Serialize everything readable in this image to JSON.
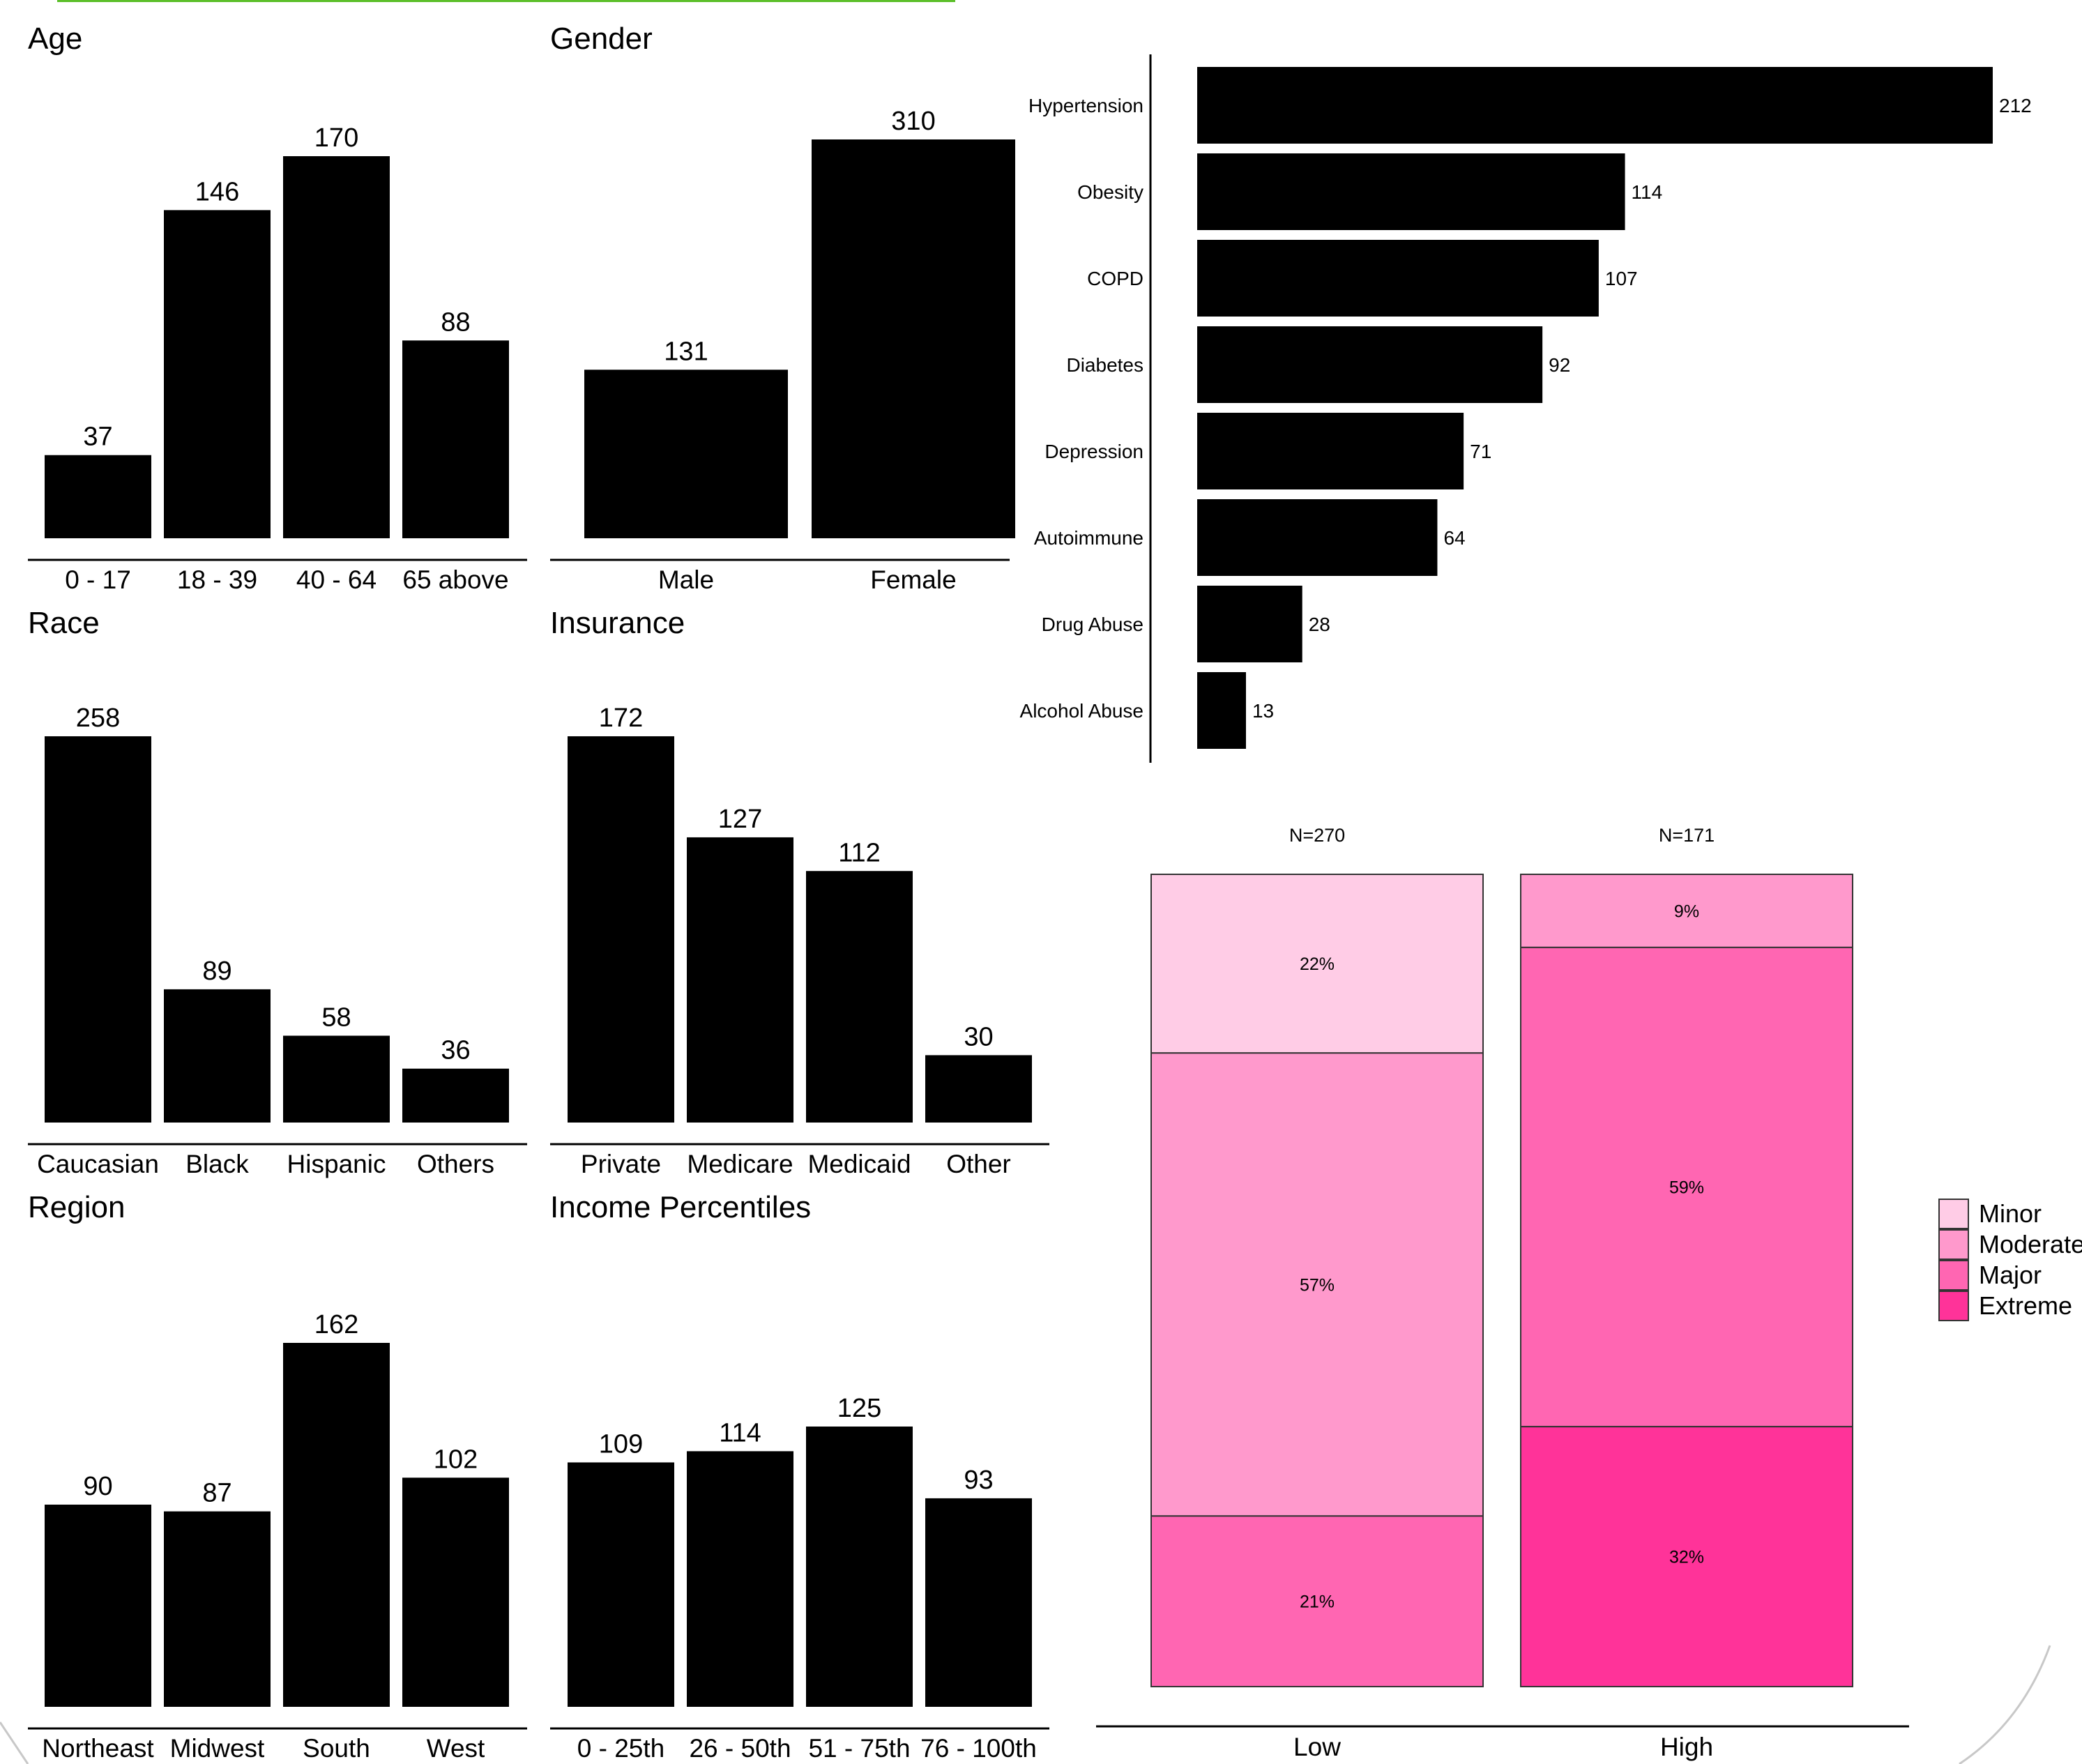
{
  "colors": {
    "bar": "#000000",
    "accent_line": "#5cbf2a",
    "Minor": "#ffcce6",
    "Moderate": "#ff99cc",
    "Major": "#ff66b2",
    "Extreme": "#ff3399"
  },
  "chart_data": [
    {
      "type": "bar",
      "title": "Age",
      "categories": [
        "0 - 17",
        "18 - 39",
        "40 - 64",
        "65 above"
      ],
      "values": [
        37,
        146,
        170,
        88
      ],
      "value_labels": [
        "37",
        "146",
        "170",
        "88"
      ]
    },
    {
      "type": "bar",
      "title": "Gender",
      "categories": [
        "Male",
        "Female"
      ],
      "values": [
        131,
        310
      ],
      "value_labels": [
        "131",
        "310"
      ]
    },
    {
      "type": "bar",
      "title": "Race",
      "categories": [
        "Caucasian",
        "Black",
        "Hispanic",
        "Others"
      ],
      "values": [
        258,
        89,
        58,
        36
      ],
      "value_labels": [
        "258",
        "89",
        "58",
        "36"
      ]
    },
    {
      "type": "bar",
      "title": "Insurance",
      "categories": [
        "Private",
        "Medicare",
        "Medicaid",
        "Other"
      ],
      "values": [
        172,
        127,
        112,
        30
      ],
      "value_labels": [
        "172",
        "127",
        "112",
        "30"
      ]
    },
    {
      "type": "bar",
      "title": "Region",
      "categories": [
        "Northeast",
        "Midwest",
        "South",
        "West"
      ],
      "values": [
        90,
        87,
        162,
        102
      ],
      "value_labels": [
        "90",
        "87",
        "162",
        "102"
      ]
    },
    {
      "type": "bar",
      "title": "Income Percentiles",
      "categories": [
        "0 - 25th",
        "26 - 50th",
        "51 - 75th",
        "76 - 100th"
      ],
      "values": [
        109,
        114,
        125,
        93
      ],
      "value_labels": [
        "109",
        "114",
        "125",
        "93"
      ]
    },
    {
      "type": "bar",
      "orientation": "horizontal",
      "title": "",
      "categories": [
        "Hypertension",
        "Obesity",
        "COPD",
        "Diabetes",
        "Depression",
        "Autoimmune",
        "Drug Abuse",
        "Alcohol Abuse"
      ],
      "values": [
        212,
        114,
        107,
        92,
        71,
        64,
        28,
        13
      ],
      "value_labels": [
        "212",
        "114",
        "107",
        "92",
        "71",
        "64",
        "28",
        "13"
      ]
    },
    {
      "type": "bar",
      "stacked": true,
      "percent": true,
      "title": "",
      "categories": [
        "Low",
        "High"
      ],
      "n_labels": [
        "N=270",
        "N=171"
      ],
      "legend": {
        "position": "right",
        "entries": [
          "Minor",
          "Moderate",
          "Major",
          "Extreme"
        ]
      },
      "series": [
        {
          "name": "Minor",
          "values": [
            22,
            0
          ],
          "labels": [
            "22%",
            ""
          ]
        },
        {
          "name": "Moderate",
          "values": [
            57,
            9
          ],
          "labels": [
            "57%",
            "9%"
          ]
        },
        {
          "name": "Major",
          "values": [
            21,
            59
          ],
          "labels": [
            "21%",
            "59%"
          ]
        },
        {
          "name": "Extreme",
          "values": [
            0,
            32
          ],
          "labels": [
            "",
            "32%"
          ]
        }
      ]
    }
  ]
}
